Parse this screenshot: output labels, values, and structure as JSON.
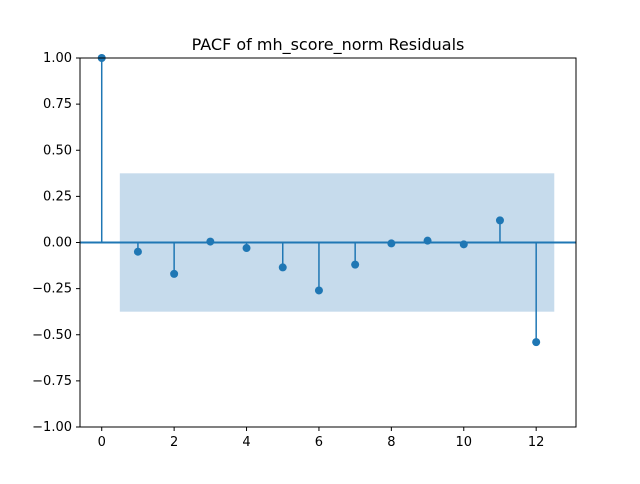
{
  "chart_data": {
    "type": "stem",
    "title": "PACF of mh_score_norm Residuals",
    "xlabel": "",
    "ylabel": "",
    "xlim": [
      -0.6,
      13.1
    ],
    "ylim": [
      -1.0,
      1.0
    ],
    "xticks": [
      0,
      2,
      4,
      6,
      8,
      10,
      12
    ],
    "yticks": [
      1.0,
      0.75,
      0.5,
      0.25,
      0.0,
      -0.25,
      -0.5,
      -0.75,
      -1.0
    ],
    "ytick_labels": [
      "1.00",
      "0.75",
      "0.50",
      "0.25",
      "0.00",
      "−0.25",
      "−0.50",
      "−0.75",
      "−1.00"
    ],
    "xtick_labels": [
      "0",
      "2",
      "4",
      "6",
      "8",
      "10",
      "12"
    ],
    "lags": [
      0,
      1,
      2,
      3,
      4,
      5,
      6,
      7,
      8,
      9,
      10,
      11,
      12
    ],
    "values": [
      1.0,
      -0.05,
      -0.17,
      0.005,
      -0.03,
      -0.135,
      -0.26,
      -0.12,
      -0.005,
      0.01,
      -0.01,
      0.12,
      -0.54
    ],
    "confidence_band": {
      "x_start": 0.5,
      "x_end": 12.5,
      "upper": 0.375,
      "lower": -0.375
    },
    "grid": false,
    "colors": {
      "stem": "#1f77b4",
      "marker": "#1f77b4",
      "band": "#c6dbec",
      "zero_line": "#1f77b4"
    }
  }
}
